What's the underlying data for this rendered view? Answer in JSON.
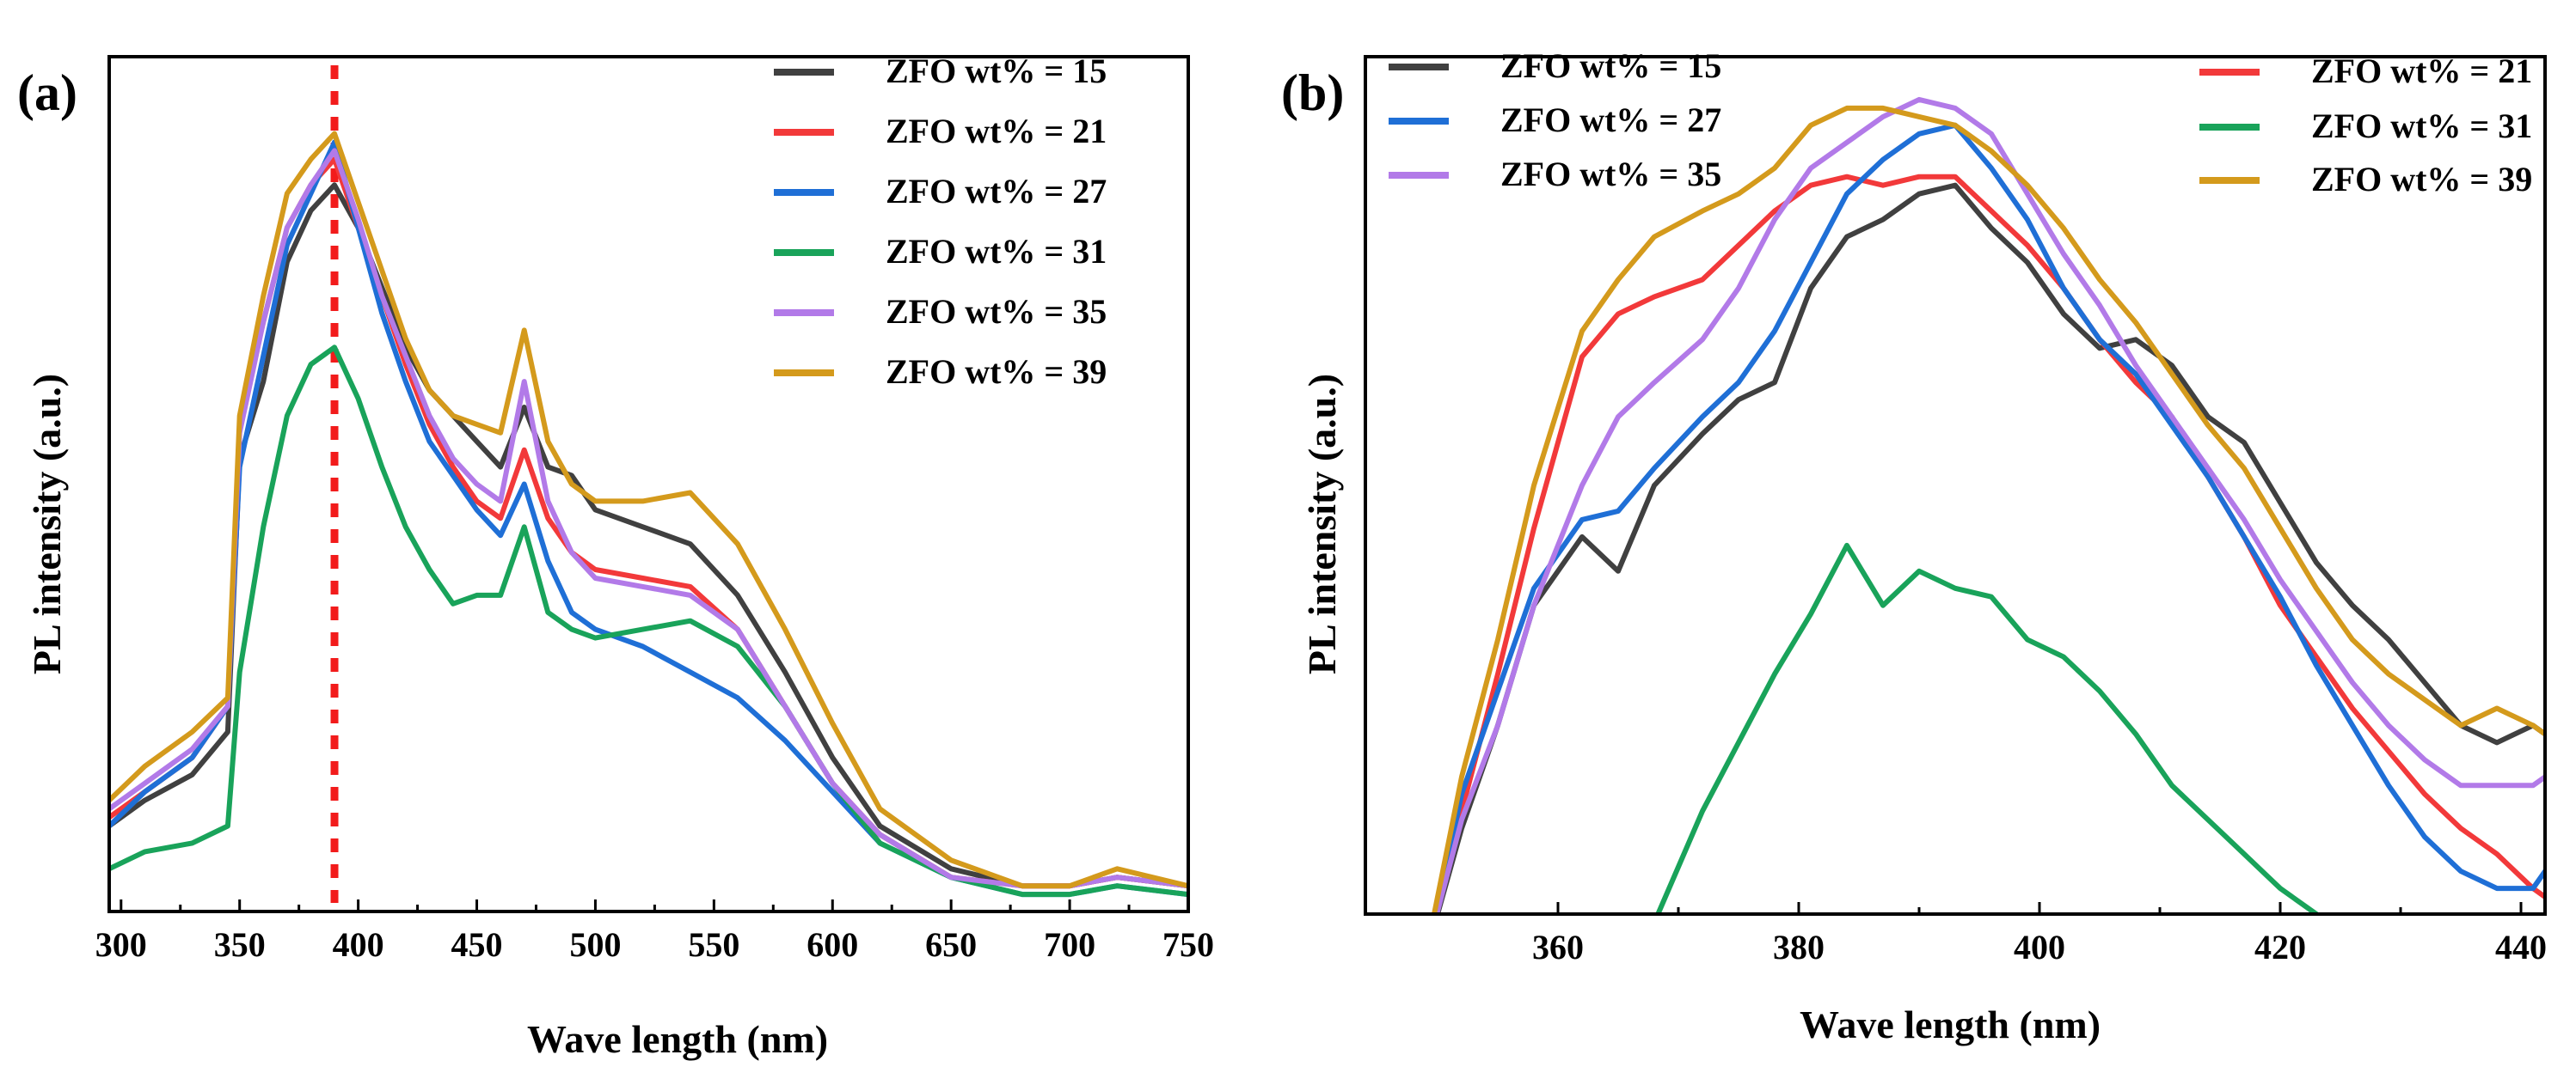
{
  "colors": {
    "15": "#404040",
    "21": "#f2393a",
    "27": "#1f6fd6",
    "31": "#19a35a",
    "35": "#b27ae8",
    "39": "#d49a1c",
    "marker": "#f21b1b"
  },
  "chart_data": [
    {
      "panel": "(a)",
      "type": "line",
      "xlabel": "Wave length (nm)",
      "ylabel": "PL intensity (a.u.)",
      "xlim": [
        295,
        750
      ],
      "ylim": [
        0,
        100
      ],
      "xticks": [
        300,
        350,
        400,
        450,
        500,
        550,
        600,
        650,
        700,
        750
      ],
      "yticks_shown": false,
      "reference_line_x": 390,
      "legend_position": "top-right",
      "x": [
        295,
        310,
        330,
        345,
        350,
        360,
        370,
        380,
        390,
        400,
        410,
        420,
        430,
        440,
        450,
        460,
        470,
        480,
        490,
        500,
        520,
        540,
        560,
        580,
        600,
        620,
        650,
        680,
        700,
        720,
        750
      ],
      "series": [
        {
          "name": "ZFO wt% = 15",
          "key": "15",
          "values": [
            10,
            13,
            16,
            21,
            53,
            62,
            76,
            82,
            85,
            80,
            73,
            66,
            61,
            58,
            55,
            52,
            59,
            52,
            51,
            47,
            45,
            43,
            37,
            28,
            18,
            10,
            5,
            3,
            3,
            4,
            3
          ]
        },
        {
          "name": "ZFO wt% = 21",
          "key": "21",
          "values": [
            11,
            14,
            18,
            24,
            57,
            69,
            80,
            85,
            88,
            80,
            72,
            64,
            57,
            52,
            48,
            46,
            54,
            46,
            42,
            40,
            39,
            38,
            33,
            24,
            15,
            9,
            4,
            3,
            3,
            4,
            3
          ]
        },
        {
          "name": "ZFO wt% = 27",
          "key": "27",
          "values": [
            10,
            14,
            18,
            24,
            52,
            65,
            78,
            84,
            90,
            80,
            70,
            62,
            55,
            51,
            47,
            44,
            50,
            41,
            35,
            33,
            31,
            28,
            25,
            20,
            14,
            8,
            4,
            2,
            2,
            3,
            2
          ]
        },
        {
          "name": "ZFO wt% = 31",
          "key": "31",
          "values": [
            5,
            7,
            8,
            10,
            28,
            45,
            58,
            64,
            66,
            60,
            52,
            45,
            40,
            36,
            37,
            37,
            45,
            35,
            33,
            32,
            33,
            34,
            31,
            24,
            15,
            8,
            4,
            2,
            2,
            3,
            2
          ]
        },
        {
          "name": "ZFO wt% = 35",
          "key": "35",
          "values": [
            12,
            15,
            19,
            24,
            56,
            69,
            80,
            85,
            89,
            81,
            72,
            65,
            58,
            53,
            50,
            48,
            62,
            48,
            42,
            39,
            38,
            37,
            33,
            24,
            15,
            9,
            4,
            3,
            3,
            4,
            3
          ]
        },
        {
          "name": "ZFO wt% = 39",
          "key": "39",
          "values": [
            13,
            17,
            21,
            25,
            58,
            72,
            84,
            88,
            91,
            83,
            75,
            67,
            61,
            58,
            57,
            56,
            68,
            55,
            50,
            48,
            48,
            49,
            43,
            33,
            22,
            12,
            6,
            3,
            3,
            5,
            3
          ]
        }
      ]
    },
    {
      "panel": "(b)",
      "type": "line",
      "xlabel": "Wave length (nm)",
      "ylabel": "PL intensity (a.u.)",
      "xlim": [
        344,
        442
      ],
      "ylim": [
        0,
        100
      ],
      "xticks": [
        360,
        380,
        400,
        420,
        440
      ],
      "yticks_shown": false,
      "legend_position": "top-left and top-right",
      "x": [
        349,
        352,
        355,
        358,
        362,
        365,
        368,
        372,
        375,
        378,
        381,
        384,
        387,
        390,
        393,
        396,
        399,
        402,
        405,
        408,
        411,
        414,
        417,
        420,
        423,
        426,
        429,
        432,
        435,
        438,
        441,
        442
      ],
      "series": [
        {
          "name": "ZFO wt% = 15",
          "key": "15",
          "values": [
            -5,
            10,
            22,
            36,
            44,
            40,
            50,
            56,
            60,
            62,
            73,
            79,
            81,
            84,
            85,
            80,
            76,
            70,
            66,
            67,
            64,
            58,
            55,
            48,
            41,
            36,
            32,
            27,
            22,
            20,
            22,
            21
          ]
        },
        {
          "name": "ZFO wt% = 21",
          "key": "21",
          "values": [
            -5,
            12,
            28,
            45,
            65,
            70,
            72,
            74,
            78,
            82,
            85,
            86,
            85,
            86,
            86,
            82,
            78,
            73,
            67,
            62,
            58,
            51,
            44,
            36,
            30,
            24,
            19,
            14,
            10,
            7,
            3,
            2
          ]
        },
        {
          "name": "ZFO wt% = 27",
          "key": "27",
          "values": [
            -6,
            14,
            26,
            38,
            46,
            47,
            52,
            58,
            62,
            68,
            76,
            84,
            88,
            91,
            92,
            87,
            81,
            73,
            67,
            63,
            57,
            51,
            44,
            37,
            29,
            22,
            15,
            9,
            5,
            3,
            3,
            5
          ]
        },
        {
          "name": "ZFO wt% = 31",
          "key": "31",
          "values": [
            null,
            null,
            null,
            null,
            null,
            null,
            -1,
            12,
            20,
            28,
            35,
            43,
            36,
            40,
            38,
            37,
            32,
            30,
            26,
            21,
            15,
            11,
            7,
            3,
            0,
            null,
            null,
            null,
            null,
            null,
            null,
            null
          ]
        },
        {
          "name": "ZFO wt% = 35",
          "key": "35",
          "values": [
            -5,
            11,
            22,
            36,
            50,
            58,
            62,
            67,
            73,
            81,
            87,
            90,
            93,
            95,
            94,
            91,
            84,
            77,
            71,
            64,
            58,
            52,
            46,
            39,
            33,
            27,
            22,
            18,
            15,
            15,
            15,
            16
          ]
        },
        {
          "name": "ZFO wt% = 39",
          "key": "39",
          "values": [
            -5,
            16,
            32,
            50,
            68,
            74,
            79,
            82,
            84,
            87,
            92,
            94,
            94,
            93,
            92,
            89,
            85,
            80,
            74,
            69,
            63,
            57,
            52,
            45,
            38,
            32,
            28,
            25,
            22,
            24,
            22,
            21
          ]
        }
      ]
    }
  ]
}
